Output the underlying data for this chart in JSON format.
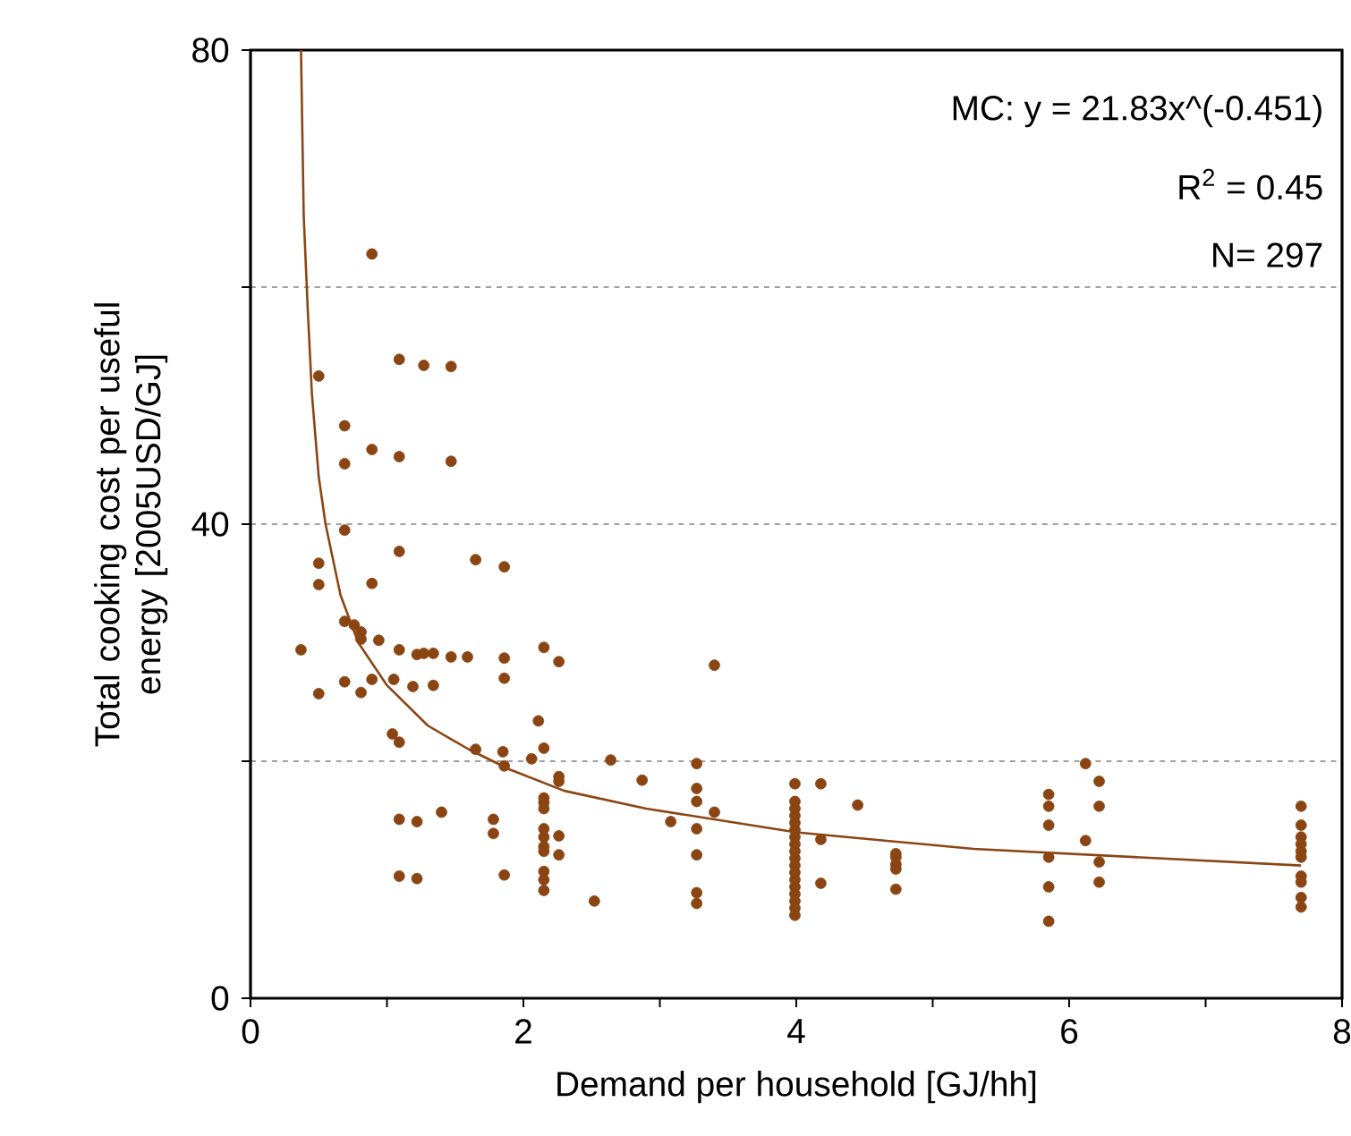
{
  "chart_data": {
    "type": "scatter",
    "xlabel": "Demand per household [GJ/hh]",
    "ylabel": "Total cooking cost per useful energy [2005USD/GJ]",
    "annotations": [
      "MC: y = 21.83x^(-0.451)",
      "R$^{2}$ = 0.45",
      "N= 297"
    ],
    "xlim": [
      0,
      8
    ],
    "ylim": [
      0,
      80
    ],
    "xticks": [
      0,
      {
        "value": 1,
        "label": null
      },
      2,
      {
        "value": 3,
        "label": null
      },
      4,
      {
        "value": 5,
        "label": null
      },
      6,
      {
        "value": 7,
        "label": null
      },
      8
    ],
    "yticks": [
      0,
      {
        "value": 20,
        "label": null
      },
      40,
      {
        "value": 60,
        "label": null
      },
      80
    ],
    "grid": "y",
    "series": [
      {
        "marker": "circle",
        "color": "#8b4513",
        "x": [
          0.89,
          0.5,
          1.09,
          1.27,
          1.47,
          0.69,
          0.89,
          0.69,
          1.09,
          1.47,
          0.69,
          1.09,
          1.65,
          1.86,
          0.5,
          0.5,
          0.89,
          0.69,
          0.76,
          0.81,
          0.81,
          0.94,
          0.37,
          1.09,
          1.22,
          1.27,
          1.34,
          1.47,
          1.59,
          1.86,
          1.86,
          2.15,
          2.26,
          0.69,
          0.5,
          0.81,
          0.89,
          1.05,
          1.19,
          1.34,
          2.11,
          1.04,
          1.09,
          1.65,
          1.85,
          2.15,
          1.86,
          2.06,
          2.64,
          2.87,
          2.26,
          2.26,
          2.15,
          2.15,
          2.15,
          1.09,
          1.22,
          1.4,
          1.78,
          1.78,
          2.15,
          2.15,
          2.15,
          2.15,
          2.26,
          2.26,
          1.86,
          1.09,
          1.22,
          2.15,
          2.15,
          2.15,
          2.52,
          3.4,
          3.27,
          3.27,
          3.27,
          3.27,
          3.27,
          3.27,
          3.27,
          3.08,
          3.4,
          3.99,
          3.99,
          3.99,
          3.99,
          3.99,
          3.99,
          3.99,
          3.99,
          3.99,
          3.99,
          3.99,
          3.99,
          3.99,
          3.99,
          3.99,
          3.99,
          3.99,
          3.99,
          4.18,
          4.18,
          4.18,
          4.45,
          4.73,
          4.73,
          4.73,
          4.73,
          4.73,
          5.85,
          5.85,
          5.85,
          5.85,
          5.85,
          5.85,
          6.12,
          6.22,
          6.22,
          6.12,
          6.22,
          6.22,
          7.7,
          7.7,
          7.7,
          7.7,
          7.7,
          7.7,
          7.7,
          7.7,
          7.7,
          7.7
        ],
        "values": [
          62.8,
          52.5,
          53.9,
          53.4,
          53.3,
          48.3,
          46.3,
          45.1,
          45.7,
          45.3,
          39.5,
          37.7,
          37.0,
          36.4,
          36.7,
          34.9,
          35.0,
          31.8,
          31.5,
          30.9,
          30.3,
          30.2,
          29.4,
          29.4,
          29.0,
          29.1,
          29.1,
          28.8,
          28.8,
          28.7,
          27.0,
          29.6,
          28.4,
          26.7,
          25.7,
          25.8,
          26.9,
          26.9,
          26.3,
          26.4,
          23.4,
          22.3,
          21.6,
          21.0,
          20.8,
          21.1,
          19.6,
          20.2,
          20.1,
          18.4,
          18.7,
          18.3,
          16.9,
          16.5,
          16.0,
          15.1,
          14.9,
          15.7,
          15.1,
          13.9,
          14.3,
          13.6,
          12.8,
          12.4,
          13.7,
          12.1,
          10.4,
          10.3,
          10.1,
          10.7,
          10.0,
          9.1,
          8.2,
          28.1,
          19.8,
          17.7,
          16.6,
          14.3,
          12.1,
          8.9,
          8.0,
          14.9,
          15.7,
          18.1,
          16.6,
          16.0,
          15.4,
          14.8,
          14.2,
          13.6,
          13.0,
          12.4,
          11.8,
          11.2,
          10.6,
          10.0,
          9.4,
          8.8,
          8.2,
          7.6,
          7.0,
          18.1,
          13.4,
          9.7,
          16.3,
          12.2,
          11.9,
          11.3,
          10.9,
          9.2,
          17.2,
          16.2,
          14.6,
          11.9,
          9.4,
          6.5,
          19.8,
          18.3,
          16.2,
          13.3,
          11.5,
          9.8,
          16.2,
          14.6,
          13.6,
          13.0,
          12.4,
          11.9,
          10.3,
          9.8,
          8.5,
          7.7
        ]
      },
      {
        "type": "line",
        "marker": "none",
        "line_style": "solid",
        "color": "#8b4513",
        "x": [
          0.37,
          0.39,
          0.42,
          0.45,
          0.5,
          0.55,
          0.66,
          0.79,
          1.0,
          1.3,
          1.6,
          1.9,
          2.3,
          2.9,
          4.0,
          5.3,
          7.7
        ],
        "values": [
          80,
          66,
          58,
          51,
          44,
          40,
          34,
          30,
          26.4,
          23,
          21,
          19.3,
          17.5,
          16,
          14,
          12.6,
          11.2
        ]
      }
    ]
  }
}
